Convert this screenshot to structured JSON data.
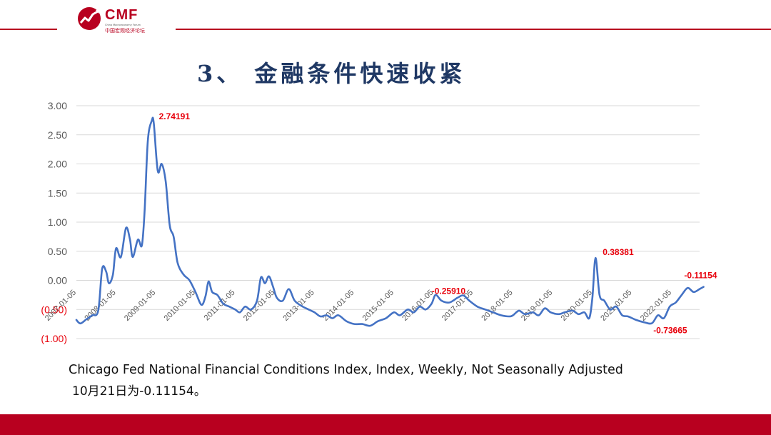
{
  "header": {
    "logo_text": "CMF",
    "logo_sub": "China Macroeconomy Forum",
    "logo_cn": "中国宏观经济论坛"
  },
  "title": "3、 金融条件快速收紧",
  "caption_line1": "Chicago Fed National Financial Conditions Index, Index, Weekly, Not Seasonally Adjusted",
  "caption_line2": "10月21日为-0.11154。",
  "colors": {
    "brand": "#b8001f",
    "title": "#1f3864",
    "line": "#4472c4",
    "annotation": "#e8000b"
  },
  "chart_data": {
    "type": "line",
    "ylim": [
      -1.0,
      3.0
    ],
    "yticks": [
      3.0,
      2.5,
      2.0,
      1.5,
      1.0,
      0.5,
      0.0,
      -0.5,
      -1.0
    ],
    "ytick_labels": [
      "3.00",
      "2.50",
      "2.00",
      "1.50",
      "1.00",
      "0.50",
      "0.00",
      "(0.50)",
      "(1.00)"
    ],
    "xtick_labels": [
      "2007-01-05",
      "2008-01-05",
      "2009-01-05",
      "2010-01-05",
      "2011-01-05",
      "2012-01-05",
      "2013-01-05",
      "2014-01-05",
      "2015-01-05",
      "2016-01-05",
      "2017-01-05",
      "2018-01-05",
      "2019-01-05",
      "2020-01-05",
      "2021-01-05",
      "2022-01-05"
    ],
    "x_start": 2007.0,
    "x_end": 2022.8,
    "grid": true,
    "series": [
      {
        "points": [
          [
            2007.0,
            -0.68
          ],
          [
            2007.1,
            -0.74
          ],
          [
            2007.25,
            -0.67
          ],
          [
            2007.4,
            -0.6
          ],
          [
            2007.55,
            -0.52
          ],
          [
            2007.65,
            0.2
          ],
          [
            2007.75,
            0.15
          ],
          [
            2007.82,
            -0.05
          ],
          [
            2007.92,
            0.1
          ],
          [
            2008.0,
            0.55
          ],
          [
            2008.12,
            0.4
          ],
          [
            2008.25,
            0.9
          ],
          [
            2008.35,
            0.7
          ],
          [
            2008.42,
            0.4
          ],
          [
            2008.55,
            0.7
          ],
          [
            2008.65,
            0.6
          ],
          [
            2008.72,
            1.2
          ],
          [
            2008.8,
            2.4
          ],
          [
            2008.9,
            2.74191
          ],
          [
            2008.95,
            2.7
          ],
          [
            2009.05,
            1.88
          ],
          [
            2009.15,
            2.0
          ],
          [
            2009.25,
            1.7
          ],
          [
            2009.35,
            0.95
          ],
          [
            2009.45,
            0.75
          ],
          [
            2009.55,
            0.3
          ],
          [
            2009.7,
            0.1
          ],
          [
            2009.85,
            0.0
          ],
          [
            2010.0,
            -0.2
          ],
          [
            2010.15,
            -0.42
          ],
          [
            2010.25,
            -0.28
          ],
          [
            2010.33,
            -0.02
          ],
          [
            2010.42,
            -0.2
          ],
          [
            2010.55,
            -0.25
          ],
          [
            2010.7,
            -0.4
          ],
          [
            2010.85,
            -0.45
          ],
          [
            2011.0,
            -0.5
          ],
          [
            2011.12,
            -0.55
          ],
          [
            2011.25,
            -0.45
          ],
          [
            2011.4,
            -0.5
          ],
          [
            2011.55,
            -0.35
          ],
          [
            2011.65,
            0.05
          ],
          [
            2011.75,
            -0.05
          ],
          [
            2011.85,
            0.07
          ],
          [
            2011.95,
            -0.1
          ],
          [
            2012.05,
            -0.3
          ],
          [
            2012.2,
            -0.35
          ],
          [
            2012.35,
            -0.15
          ],
          [
            2012.5,
            -0.35
          ],
          [
            2012.7,
            -0.45
          ],
          [
            2012.85,
            -0.5
          ],
          [
            2013.0,
            -0.55
          ],
          [
            2013.15,
            -0.62
          ],
          [
            2013.3,
            -0.6
          ],
          [
            2013.45,
            -0.65
          ],
          [
            2013.6,
            -0.6
          ],
          [
            2013.8,
            -0.7
          ],
          [
            2014.0,
            -0.75
          ],
          [
            2014.2,
            -0.75
          ],
          [
            2014.4,
            -0.78
          ],
          [
            2014.6,
            -0.7
          ],
          [
            2014.8,
            -0.65
          ],
          [
            2015.0,
            -0.55
          ],
          [
            2015.15,
            -0.6
          ],
          [
            2015.35,
            -0.5
          ],
          [
            2015.5,
            -0.55
          ],
          [
            2015.65,
            -0.45
          ],
          [
            2015.8,
            -0.5
          ],
          [
            2015.95,
            -0.4
          ],
          [
            2016.05,
            -0.25
          ],
          [
            2016.2,
            -0.35
          ],
          [
            2016.4,
            -0.38
          ],
          [
            2016.6,
            -0.3
          ],
          [
            2016.75,
            -0.2591
          ],
          [
            2016.9,
            -0.35
          ],
          [
            2017.1,
            -0.45
          ],
          [
            2017.3,
            -0.5
          ],
          [
            2017.5,
            -0.55
          ],
          [
            2017.7,
            -0.6
          ],
          [
            2017.9,
            -0.62
          ],
          [
            2018.0,
            -0.6
          ],
          [
            2018.15,
            -0.52
          ],
          [
            2018.3,
            -0.58
          ],
          [
            2018.5,
            -0.55
          ],
          [
            2018.65,
            -0.6
          ],
          [
            2018.8,
            -0.48
          ],
          [
            2018.95,
            -0.55
          ],
          [
            2019.15,
            -0.58
          ],
          [
            2019.3,
            -0.55
          ],
          [
            2019.5,
            -0.52
          ],
          [
            2019.65,
            -0.58
          ],
          [
            2019.8,
            -0.55
          ],
          [
            2019.92,
            -0.65
          ],
          [
            2020.0,
            -0.3
          ],
          [
            2020.08,
            0.38381
          ],
          [
            2020.18,
            -0.25
          ],
          [
            2020.3,
            -0.35
          ],
          [
            2020.45,
            -0.5
          ],
          [
            2020.6,
            -0.45
          ],
          [
            2020.75,
            -0.6
          ],
          [
            2020.9,
            -0.62
          ],
          [
            2021.1,
            -0.68
          ],
          [
            2021.3,
            -0.72
          ],
          [
            2021.5,
            -0.73665
          ],
          [
            2021.65,
            -0.6
          ],
          [
            2021.8,
            -0.65
          ],
          [
            2021.95,
            -0.45
          ],
          [
            2022.1,
            -0.38
          ],
          [
            2022.25,
            -0.25
          ],
          [
            2022.4,
            -0.13
          ],
          [
            2022.55,
            -0.2
          ],
          [
            2022.7,
            -0.15
          ],
          [
            2022.8,
            -0.11154
          ]
        ]
      }
    ],
    "annotations": [
      {
        "x": 2008.9,
        "y": 2.74191,
        "text": "2.74191"
      },
      {
        "x": 2016.75,
        "y": -0.2591,
        "text": "-0.25910"
      },
      {
        "x": 2020.08,
        "y": 0.38381,
        "text": "0.38381"
      },
      {
        "x": 2022.8,
        "y": -0.11154,
        "text": "-0.11154"
      },
      {
        "x": 2021.5,
        "y": -0.73665,
        "text": "-0.73665"
      }
    ]
  }
}
